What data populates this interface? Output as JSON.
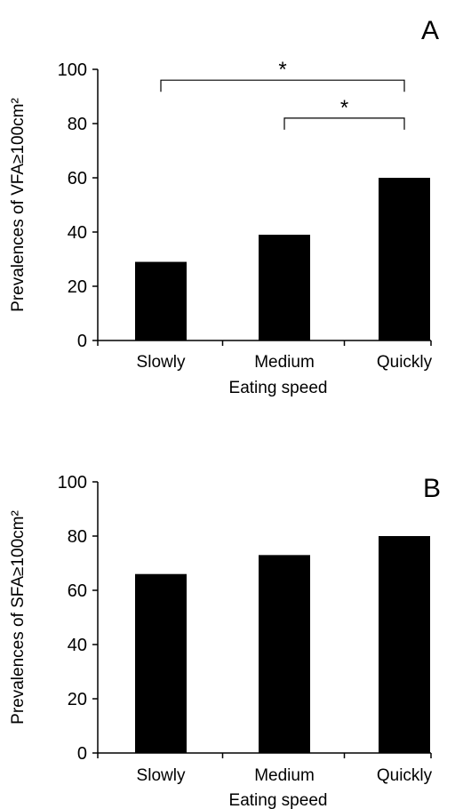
{
  "chart_data": [
    {
      "type": "bar",
      "panel_label": "A",
      "categories": [
        "Slowly",
        "Medium",
        "Quickly"
      ],
      "values": [
        29,
        39,
        60
      ],
      "xlabel": "Eating speed",
      "ylabel": "Prevalences of VFA≥100cm²",
      "ylim": [
        0,
        100
      ],
      "yticks": [
        0,
        20,
        40,
        60,
        80,
        100
      ],
      "bar_color": "#000000",
      "grid": false,
      "significance": [
        {
          "from": 0,
          "to": 2,
          "level": 96,
          "label": "*"
        },
        {
          "from": 1,
          "to": 2,
          "level": 82,
          "label": "*"
        }
      ]
    },
    {
      "type": "bar",
      "panel_label": "B",
      "categories": [
        "Slowly",
        "Medium",
        "Quickly"
      ],
      "values": [
        66,
        73,
        80
      ],
      "xlabel": "Eating speed",
      "ylabel": "Prevalences of SFA≥100cm²",
      "ylim": [
        0,
        100
      ],
      "yticks": [
        0,
        20,
        40,
        60,
        80,
        100
      ],
      "bar_color": "#000000",
      "grid": false,
      "significance": []
    }
  ]
}
